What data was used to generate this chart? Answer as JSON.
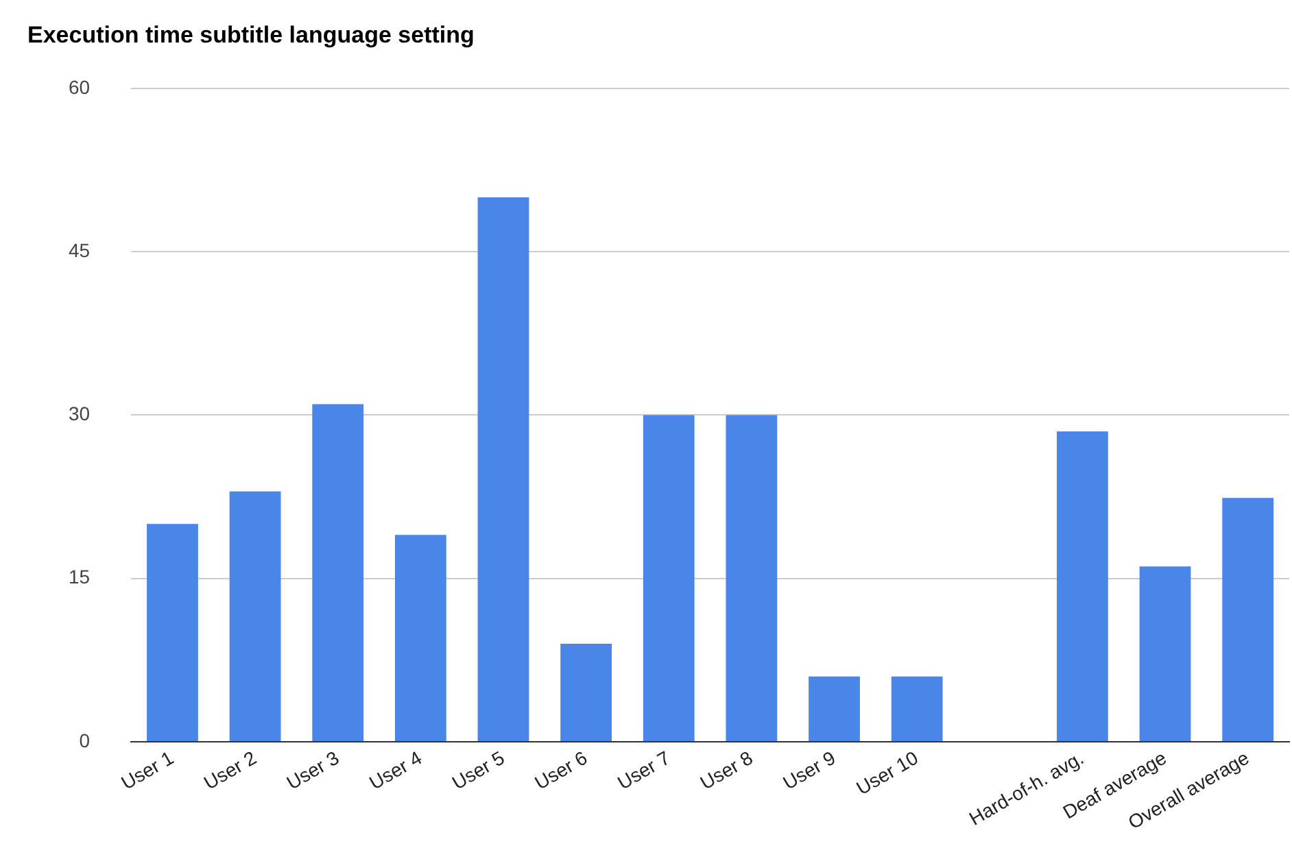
{
  "chart_data": {
    "type": "bar",
    "title": "Execution time subtitle language setting",
    "categories": [
      "User 1",
      "User 2",
      "User 3",
      "User 4",
      "User 5",
      "User 6",
      "User 7",
      "User 8",
      "User 9",
      "User 10",
      null,
      "Hard-of-h. avg.",
      "Deaf average",
      "Overall average"
    ],
    "values": [
      20,
      23,
      31,
      19,
      50,
      9,
      30,
      30,
      6,
      6,
      null,
      28.5,
      16.1,
      22.4
    ],
    "color": "#4a86e8",
    "ylim": [
      0,
      60
    ],
    "yticks": [
      0,
      15,
      30,
      45,
      60
    ],
    "grid": "y",
    "legend": false
  }
}
